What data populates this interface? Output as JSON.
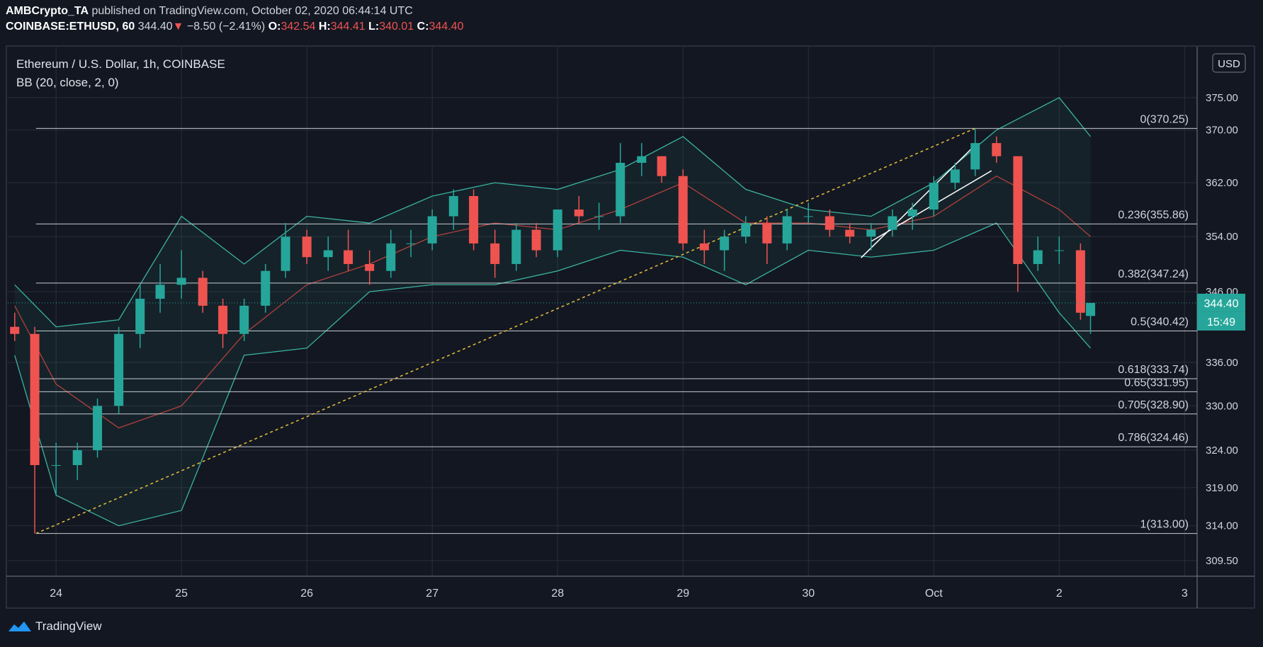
{
  "header": {
    "publisher": "AMBCrypto_TA",
    "published": "published on TradingView.com, October 02, 2020 06:44:14 UTC",
    "symbol": "COINBASE:ETHUSD, 60",
    "last": "344.40",
    "arrow": "▼",
    "change": "−8.50 (−2.41%)",
    "o_label": "O:",
    "o": "342.54",
    "h_label": "H:",
    "h": "344.41",
    "l_label": "L:",
    "l": "340.01",
    "c_label": "C:",
    "c": "344.40"
  },
  "footer": {
    "brand": "TradingView"
  },
  "chart_data": {
    "type": "candlestick",
    "title": "Ethereum / U.S. Dollar, 1h, COINBASE",
    "indicator": "BB (20, close, 2, 0)",
    "currency": "USD",
    "countdown": "15:49",
    "up_color": "#26a69a",
    "down_color": "#ef5350",
    "log_scale": true,
    "grid": true,
    "xlim": [
      23.615,
      33.1
    ],
    "ylim": [
      307.5,
      383
    ],
    "xticks": [
      24,
      25,
      26,
      27,
      28,
      29,
      30,
      {
        "value": 31,
        "label": "Oct"
      },
      {
        "value": 32,
        "label": "2"
      },
      {
        "value": 33,
        "label": "3"
      }
    ],
    "yticks": [
      {
        "value": 375,
        "label": "375.00"
      },
      {
        "value": 370,
        "label": "370.00"
      },
      {
        "value": 362,
        "label": "362.00"
      },
      {
        "value": 354,
        "label": "354.00"
      },
      {
        "value": 346,
        "label": "346.00"
      },
      {
        "value": 336,
        "label": "336.00"
      },
      {
        "value": 330,
        "label": "330.00"
      },
      {
        "value": 324,
        "label": "324.00"
      },
      {
        "value": 319,
        "label": "319.00"
      },
      {
        "value": 314,
        "label": "314.00"
      },
      {
        "value": 309.5,
        "label": "309.50"
      }
    ],
    "x": [
      23.67,
      23.83,
      24.0,
      24.17,
      24.33,
      24.5,
      24.67,
      24.83,
      25.0,
      25.17,
      25.33,
      25.5,
      25.67,
      25.83,
      26.0,
      26.17,
      26.33,
      26.5,
      26.67,
      26.83,
      27.0,
      27.17,
      27.33,
      27.5,
      27.67,
      27.83,
      28.0,
      28.17,
      28.33,
      28.5,
      28.67,
      28.83,
      29.0,
      29.17,
      29.33,
      29.5,
      29.67,
      29.83,
      30.0,
      30.17,
      30.33,
      30.5,
      30.67,
      30.83,
      31.0,
      31.17,
      31.33,
      31.5,
      31.67,
      31.83,
      32.0,
      32.17,
      32.25
    ],
    "open": [
      341,
      340,
      322,
      322,
      324,
      330,
      340,
      345,
      347,
      348,
      344,
      340,
      344,
      349,
      354,
      351,
      352,
      350,
      349,
      353,
      353,
      357,
      360,
      353,
      350,
      355,
      352,
      358,
      357,
      357,
      365,
      366,
      363,
      353,
      352,
      354,
      356,
      353,
      357,
      357,
      355,
      354,
      355,
      357,
      358,
      362,
      364,
      368,
      366,
      350,
      352,
      352,
      342.54
    ],
    "high": [
      343,
      341,
      325,
      325,
      331,
      341,
      347,
      350,
      352,
      349,
      345,
      345,
      350,
      356,
      355,
      354,
      355,
      352,
      355,
      355,
      358,
      361,
      361,
      355,
      356,
      356,
      358,
      360,
      359,
      368,
      368,
      366,
      364,
      355,
      355,
      357,
      357,
      358,
      359,
      358,
      356,
      356,
      358,
      359,
      363,
      365,
      370.25,
      369,
      366,
      354,
      354,
      353,
      344.41
    ],
    "low": [
      339,
      313,
      318,
      320,
      323,
      329,
      338,
      343,
      345,
      343,
      338,
      339,
      343,
      348,
      350,
      349,
      349,
      347,
      348,
      351,
      352,
      355,
      352,
      348,
      349,
      351,
      351,
      356,
      355,
      356,
      363,
      362,
      352,
      350,
      349,
      353,
      350,
      352,
      356,
      354,
      353,
      352,
      354,
      355,
      357,
      361,
      363,
      365,
      346,
      349,
      350,
      342,
      340.01
    ],
    "close": [
      340,
      322,
      322,
      324,
      330,
      340,
      345,
      347,
      348,
      344,
      340,
      344,
      349,
      354,
      351,
      352,
      350,
      349,
      353,
      353,
      357,
      360,
      353,
      350,
      355,
      352,
      358,
      357,
      357,
      365,
      366,
      363,
      353,
      352,
      354,
      356,
      353,
      357,
      357,
      355,
      354,
      355,
      357,
      358,
      362,
      364,
      368,
      366,
      350,
      352,
      352,
      343,
      344.4
    ],
    "bb": {
      "upper_color": "#3bb3a0",
      "middle_color": "#b2403c",
      "x": [
        23.67,
        24.0,
        24.5,
        25.0,
        25.5,
        26.0,
        26.5,
        27.0,
        27.5,
        28.0,
        28.5,
        29.0,
        29.5,
        30.0,
        30.5,
        31.0,
        31.5,
        32.0,
        32.25
      ],
      "upper": [
        347,
        341,
        342,
        357,
        350,
        357,
        356,
        360,
        362,
        361,
        364,
        369,
        361,
        358,
        357,
        362,
        370,
        375,
        369
      ],
      "middle": [
        344,
        333,
        327,
        330,
        340,
        347,
        350,
        354,
        356,
        355,
        358,
        362,
        356,
        356,
        355,
        357,
        363,
        358,
        354
      ],
      "lower": [
        337,
        318,
        314,
        316,
        337,
        338,
        346,
        347,
        347,
        349,
        352,
        351,
        347,
        352,
        351,
        352,
        356,
        343,
        338
      ]
    },
    "fib_start": 23.84,
    "fib_levels": [
      {
        "value": 370.25,
        "label": "0(370.25)"
      },
      {
        "value": 355.86,
        "label": "0.236(355.86)"
      },
      {
        "value": 347.24,
        "label": "0.382(347.24)"
      },
      {
        "value": 340.42,
        "label": "0.5(340.42)"
      },
      {
        "value": 333.74,
        "label": "0.618(333.74)"
      },
      {
        "value": 331.95,
        "label": "0.65(331.95)"
      },
      {
        "value": 328.9,
        "label": "0.705(328.90)"
      },
      {
        "value": 324.46,
        "label": "0.786(324.46)"
      },
      {
        "value": 313,
        "label": "1(313.00)"
      }
    ],
    "trend_lines": [
      {
        "color": "#e6c13a",
        "dashed": true,
        "x": [
          23.84,
          31.33
        ],
        "y": [
          313,
          370.25
        ]
      },
      {
        "color": "#ffffff",
        "dashed": false,
        "x": [
          30.42,
          31.33
        ],
        "y": [
          350.9,
          367.7
        ]
      },
      {
        "color": "#ffffff",
        "dashed": false,
        "x": [
          30.5,
          31.46
        ],
        "y": [
          353.3,
          363.8
        ]
      }
    ],
    "last_price": 344.4,
    "last_label": "344.40"
  }
}
